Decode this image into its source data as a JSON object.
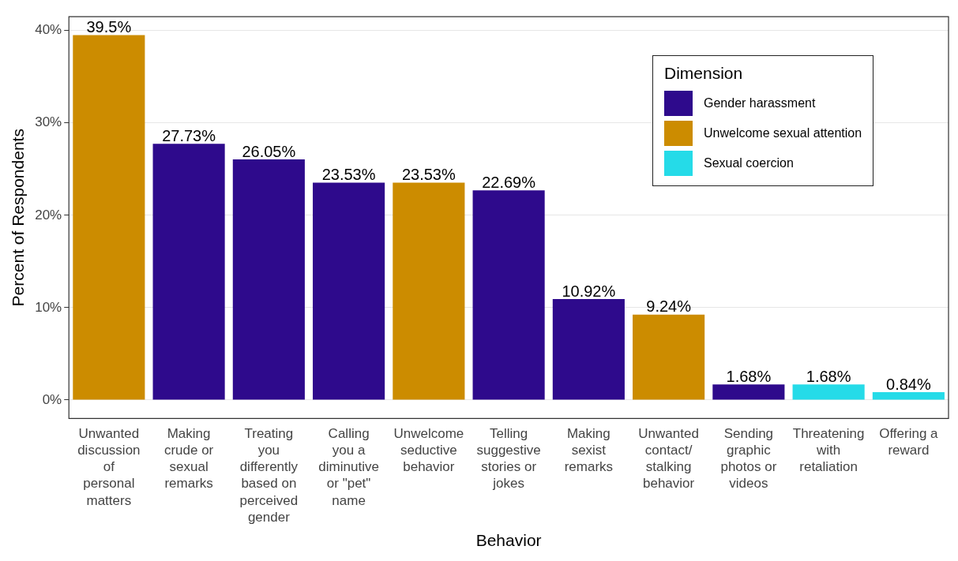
{
  "chart_data": {
    "type": "bar",
    "xlabel": "Behavior",
    "ylabel": "Percent of Respondents",
    "legend_title": "Dimension",
    "categories": [
      "Unwanted discussion of personal matters",
      "Making crude or sexual remarks",
      "Treating you differently based on perceived gender",
      "Calling you a diminutive or \"pet\" name",
      "Unwelcome seductive behavior",
      "Telling suggestive stories or jokes",
      "Making sexist remarks",
      "Unwanted contact/stalking behavior",
      "Sending graphic photos or videos",
      "Threatening with retaliation",
      "Offering a reward"
    ],
    "series": [
      {
        "name": "Gender harassment",
        "color": "#2e0a8c",
        "values": [
          null,
          27.73,
          26.05,
          23.53,
          null,
          22.69,
          10.92,
          null,
          1.68,
          null,
          null
        ],
        "value_labels": [
          null,
          "27.73%",
          "26.05%",
          "23.53%",
          null,
          "22.69%",
          "10.92%",
          null,
          "1.68%",
          null,
          null
        ]
      },
      {
        "name": "Unwelcome sexual attention",
        "color": "#cc8c00",
        "values": [
          39.5,
          null,
          null,
          null,
          23.53,
          null,
          null,
          9.24,
          null,
          null,
          null
        ],
        "value_labels": [
          "39.5%",
          null,
          null,
          null,
          "23.53%",
          null,
          null,
          "9.24%",
          null,
          null,
          null
        ]
      },
      {
        "name": "Sexual coercion",
        "color": "#25dbe8",
        "values": [
          null,
          null,
          null,
          null,
          null,
          null,
          null,
          null,
          null,
          1.68,
          0.84
        ],
        "value_labels": [
          null,
          null,
          null,
          null,
          null,
          null,
          null,
          null,
          null,
          "1.68%",
          "0.84%"
        ]
      }
    ],
    "ylim": [
      -2,
      41.5
    ],
    "yticks": [
      {
        "value": 0,
        "label": "0%"
      },
      {
        "value": 10,
        "label": "10%"
      },
      {
        "value": 20,
        "label": "20%"
      },
      {
        "value": 30,
        "label": "30%"
      },
      {
        "value": 40,
        "label": "40%"
      }
    ],
    "grid": "y",
    "legend": "top right"
  }
}
